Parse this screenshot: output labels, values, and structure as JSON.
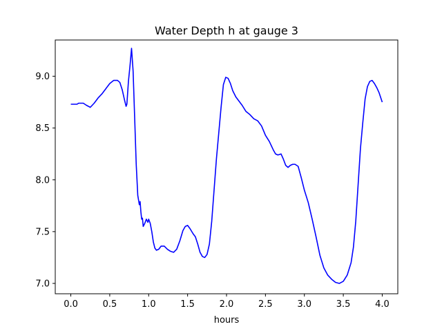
{
  "chart_data": {
    "type": "line",
    "title": "Water Depth h at gauge 3",
    "xlabel": "hours",
    "ylabel": "",
    "xlim": [
      -0.2,
      4.2
    ],
    "ylim": [
      6.9,
      9.35
    ],
    "xticks": [
      0.0,
      0.5,
      1.0,
      1.5,
      2.0,
      2.5,
      3.0,
      3.5,
      4.0
    ],
    "xtick_labels": [
      "0.0",
      "0.5",
      "1.0",
      "1.5",
      "2.0",
      "2.5",
      "3.0",
      "3.5",
      "4.0"
    ],
    "yticks": [
      7.0,
      7.5,
      8.0,
      8.5,
      9.0
    ],
    "ytick_labels": [
      "7.0",
      "7.5",
      "8.0",
      "8.5",
      "9.0"
    ],
    "grid": false,
    "series": [
      {
        "color": "#0000ff",
        "x": [
          0.0,
          0.05,
          0.08,
          0.1,
          0.13,
          0.16,
          0.2,
          0.25,
          0.3,
          0.35,
          0.4,
          0.45,
          0.5,
          0.55,
          0.6,
          0.63,
          0.66,
          0.69,
          0.71,
          0.72,
          0.74,
          0.76,
          0.78,
          0.8,
          0.82,
          0.84,
          0.86,
          0.88,
          0.89,
          0.9,
          0.91,
          0.92,
          0.93,
          0.95,
          0.97,
          0.99,
          1.0,
          1.02,
          1.04,
          1.06,
          1.08,
          1.1,
          1.13,
          1.16,
          1.2,
          1.24,
          1.28,
          1.32,
          1.36,
          1.4,
          1.44,
          1.47,
          1.5,
          1.53,
          1.57,
          1.6,
          1.63,
          1.66,
          1.69,
          1.72,
          1.75,
          1.78,
          1.81,
          1.84,
          1.87,
          1.9,
          1.93,
          1.96,
          1.99,
          2.02,
          2.05,
          2.08,
          2.12,
          2.16,
          2.2,
          2.25,
          2.3,
          2.35,
          2.4,
          2.45,
          2.5,
          2.55,
          2.6,
          2.63,
          2.66,
          2.7,
          2.73,
          2.76,
          2.79,
          2.82,
          2.85,
          2.88,
          2.92,
          2.96,
          3.0,
          3.05,
          3.1,
          3.15,
          3.2,
          3.25,
          3.3,
          3.35,
          3.4,
          3.45,
          3.5,
          3.55,
          3.6,
          3.63,
          3.66,
          3.69,
          3.72,
          3.75,
          3.78,
          3.81,
          3.84,
          3.87,
          3.9,
          3.93,
          3.96,
          4.0
        ],
        "y": [
          8.73,
          8.73,
          8.73,
          8.74,
          8.74,
          8.74,
          8.72,
          8.7,
          8.74,
          8.79,
          8.83,
          8.88,
          8.93,
          8.96,
          8.96,
          8.94,
          8.87,
          8.77,
          8.71,
          8.73,
          8.95,
          9.1,
          9.27,
          9.05,
          8.6,
          8.15,
          7.85,
          7.76,
          7.79,
          7.69,
          7.62,
          7.63,
          7.55,
          7.58,
          7.62,
          7.59,
          7.62,
          7.58,
          7.5,
          7.4,
          7.34,
          7.32,
          7.33,
          7.36,
          7.36,
          7.33,
          7.31,
          7.3,
          7.33,
          7.41,
          7.51,
          7.55,
          7.56,
          7.53,
          7.48,
          7.45,
          7.38,
          7.3,
          7.26,
          7.25,
          7.28,
          7.38,
          7.6,
          7.9,
          8.2,
          8.45,
          8.7,
          8.92,
          8.99,
          8.98,
          8.93,
          8.86,
          8.8,
          8.76,
          8.72,
          8.66,
          8.63,
          8.59,
          8.57,
          8.52,
          8.43,
          8.37,
          8.29,
          8.25,
          8.24,
          8.25,
          8.2,
          8.14,
          8.12,
          8.14,
          8.15,
          8.15,
          8.13,
          8.02,
          7.9,
          7.78,
          7.62,
          7.45,
          7.27,
          7.15,
          7.08,
          7.04,
          7.01,
          7.0,
          7.02,
          7.08,
          7.2,
          7.35,
          7.6,
          7.95,
          8.3,
          8.55,
          8.78,
          8.9,
          8.95,
          8.96,
          8.93,
          8.89,
          8.84,
          8.75
        ]
      }
    ]
  }
}
